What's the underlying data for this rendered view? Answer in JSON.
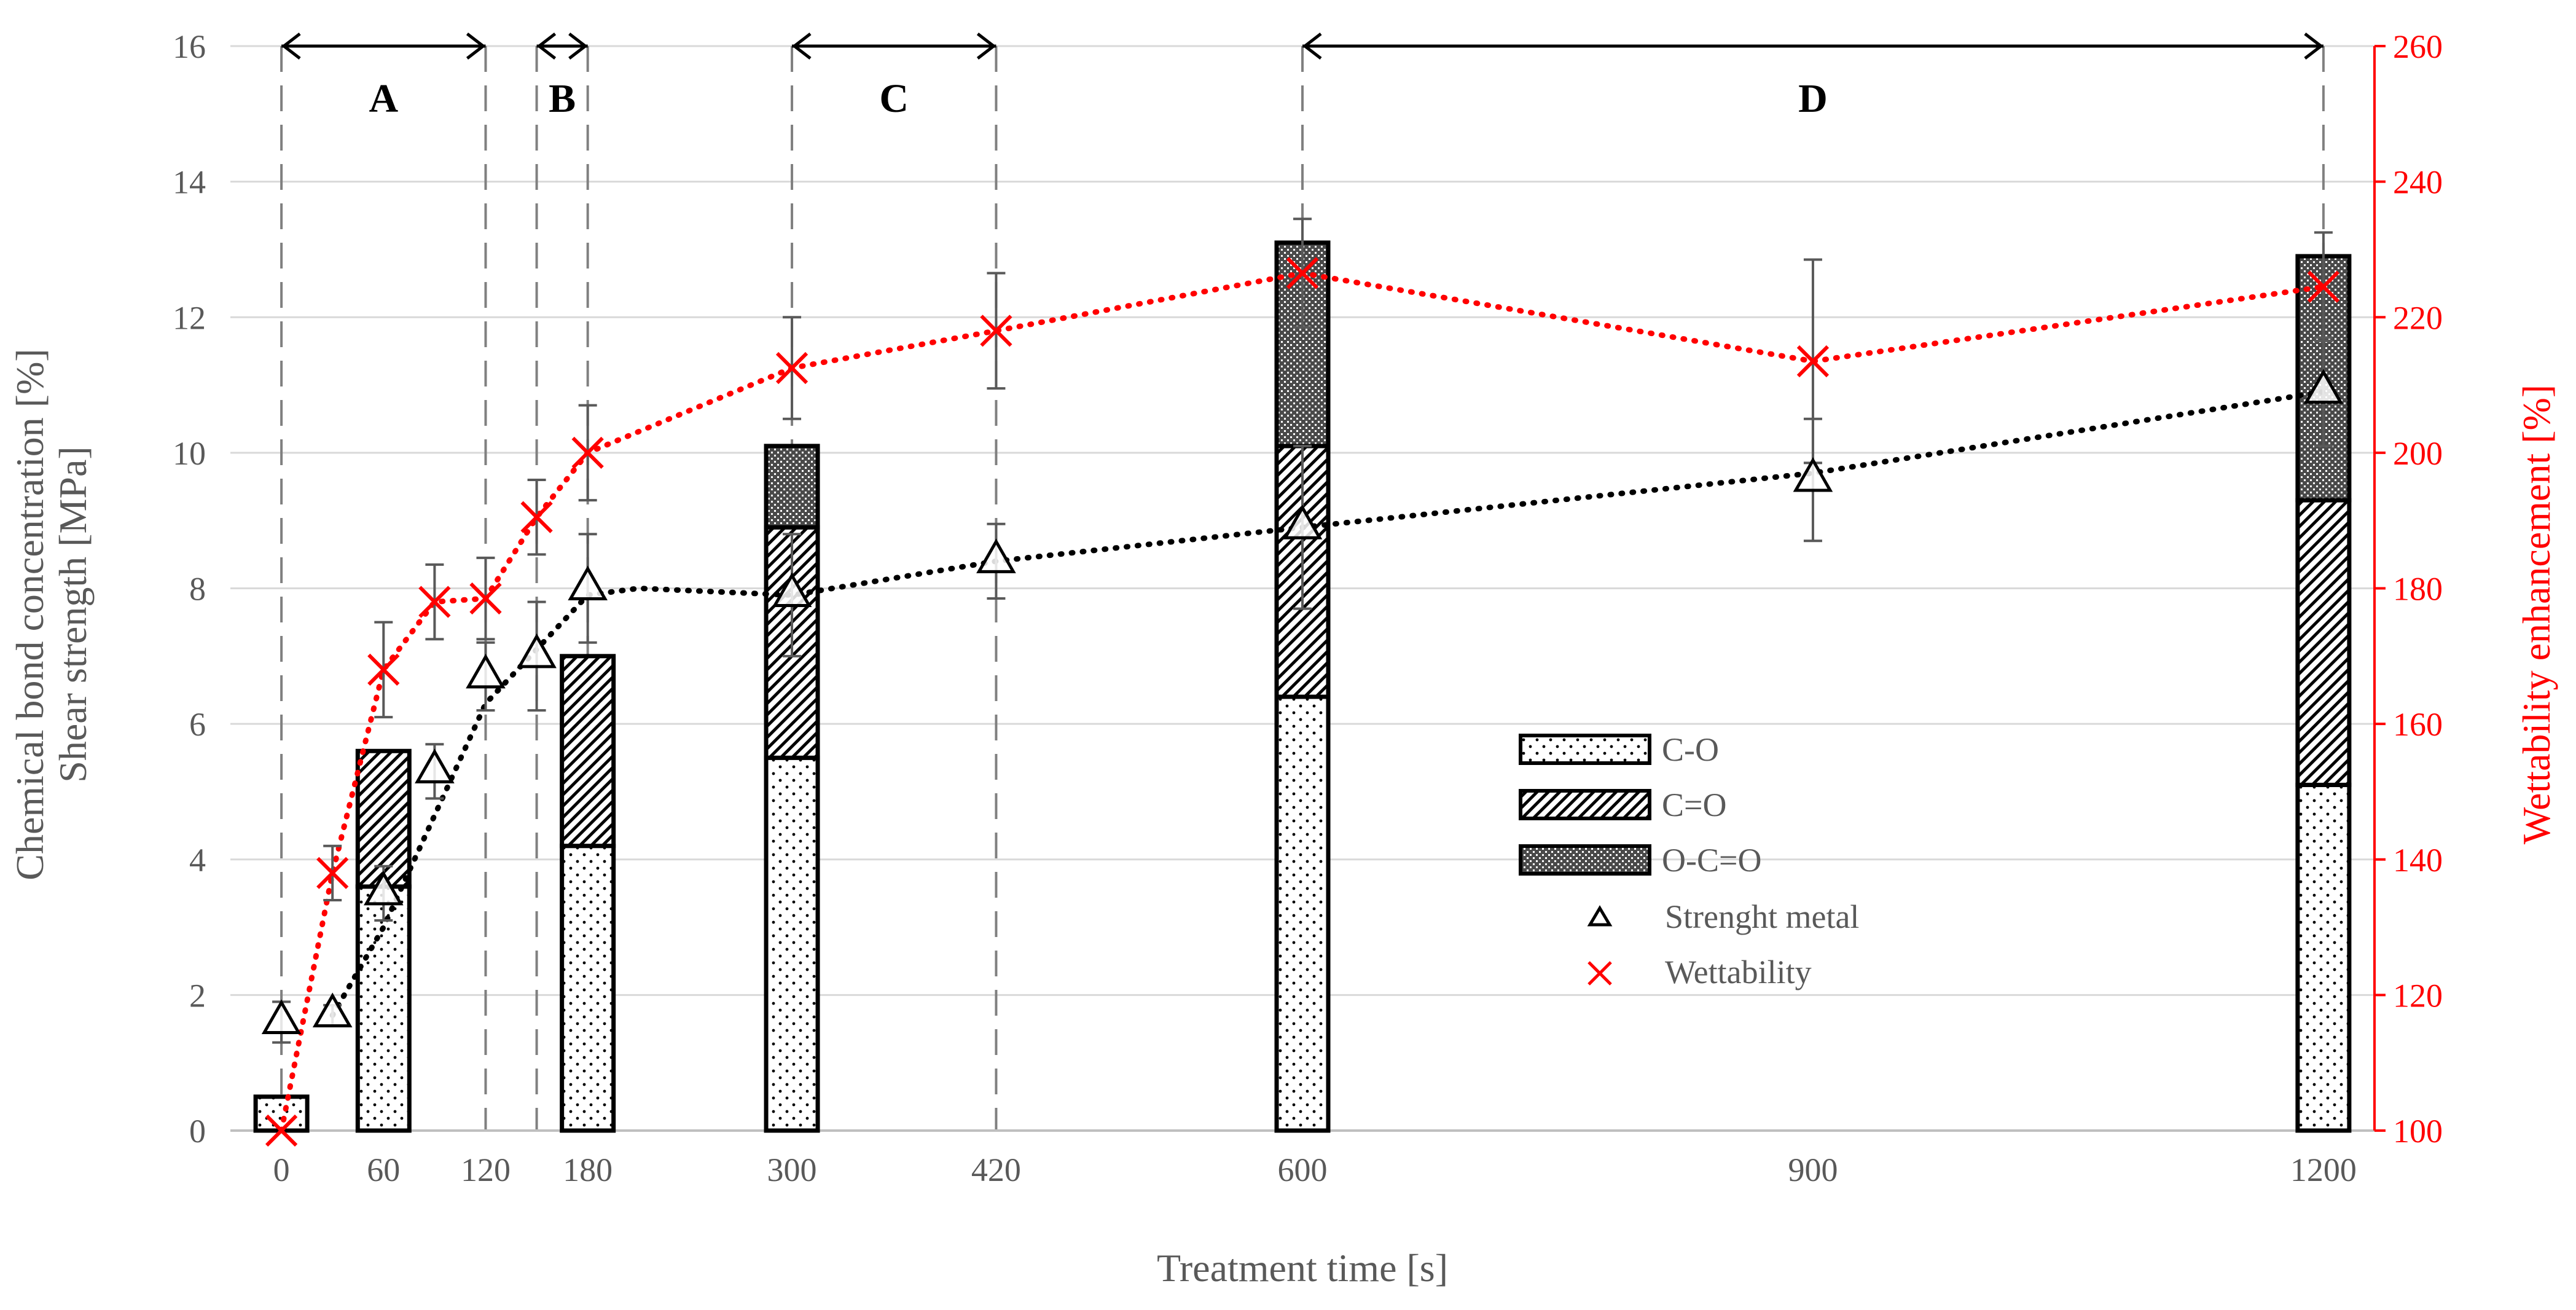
{
  "chart_data": {
    "type": "bar",
    "title": "",
    "xlabel": "Treatment time [s]",
    "ylabel_left_line1": "Chemical bond concentration [%]",
    "ylabel_left_line2": "Shear strength [MPa]",
    "ylabel_right": "Wettability enhancement [%]",
    "ylim_left": [
      0,
      16
    ],
    "ylim_right": [
      100,
      260
    ],
    "xlim": [
      -30,
      1230
    ],
    "x_ticks": [
      0,
      60,
      120,
      180,
      300,
      420,
      600,
      900,
      1200
    ],
    "y_left_ticks": [
      0,
      2,
      4,
      6,
      8,
      10,
      12,
      14,
      16
    ],
    "y_right_ticks": [
      100,
      120,
      140,
      160,
      180,
      200,
      220,
      240,
      260
    ],
    "bars": {
      "x": [
        0,
        180,
        300,
        600,
        1200
      ],
      "series": [
        {
          "name": "C-O",
          "values": [
            0.5,
            4.2,
            5.5,
            6.4,
            5.1
          ]
        },
        {
          "name": "C=O",
          "values": [
            0,
            2.8,
            3.4,
            3.7,
            4.2
          ]
        },
        {
          "name": "O-C=O",
          "values": [
            0,
            0,
            1.2,
            3.0,
            3.6
          ]
        }
      ],
      "bar_at_60": {
        "x": 60,
        "C-O": 3.6,
        "C=O": 2.0,
        "O-C=O": 0
      }
    },
    "strength": {
      "name": "Strenght metal",
      "x": [
        0,
        30,
        60,
        90,
        120,
        150,
        180,
        300,
        420,
        600,
        900,
        1200
      ],
      "y": [
        1.6,
        1.7,
        3.5,
        5.3,
        6.7,
        7.0,
        8.0,
        7.9,
        8.4,
        8.9,
        9.6,
        10.9
      ],
      "err": [
        0.3,
        0.15,
        0.4,
        0.4,
        0.5,
        0.8,
        0.8,
        0.9,
        0.55,
        1.2,
        0.9,
        0.8
      ]
    },
    "strength_trend": {
      "x": [
        30,
        60,
        120,
        180,
        210,
        300,
        420,
        600,
        900,
        1200
      ],
      "y": [
        1.7,
        3.0,
        6.3,
        7.9,
        8.0,
        7.9,
        8.4,
        8.9,
        9.7,
        10.9
      ]
    },
    "wettability": {
      "name": "Wettability",
      "x": [
        0,
        30,
        60,
        90,
        120,
        150,
        180,
        300,
        420,
        600,
        900,
        1200
      ],
      "y": [
        100,
        138,
        168,
        178,
        178.5,
        190.5,
        200,
        212.5,
        218,
        226.5,
        213.5,
        224.5
      ],
      "err": [
        0,
        4,
        7,
        5.5,
        6,
        5.5,
        7,
        7.5,
        8.5,
        8,
        15,
        8
      ]
    },
    "regions": [
      {
        "label": "A",
        "start": 0,
        "end": 120
      },
      {
        "label": "B",
        "start": 150,
        "end": 180
      },
      {
        "label": "C",
        "start": 300,
        "end": 420
      },
      {
        "label": "D",
        "start": 600,
        "end": 1200
      }
    ],
    "legend": [
      {
        "label": "C-O"
      },
      {
        "label": "C=O"
      },
      {
        "label": "O-C=O"
      },
      {
        "label": "Strenght metal"
      },
      {
        "label": "Wettability"
      }
    ],
    "colors": {
      "wettability": "#ff0000",
      "strength": "#000000",
      "axis": "#595959",
      "grid": "#d9d9d9",
      "region_line": "#808080"
    }
  }
}
